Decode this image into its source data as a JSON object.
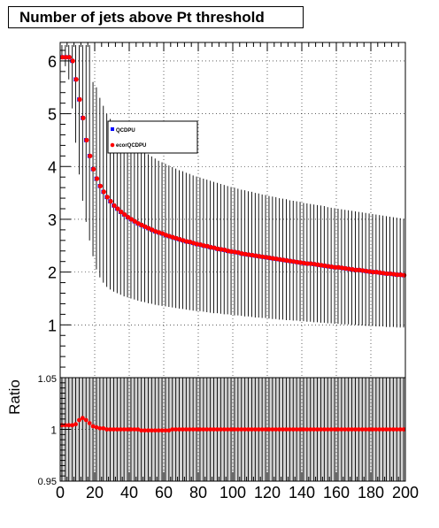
{
  "title": "Number of jets above Pt threshold",
  "chart_data": [
    {
      "type": "scatter",
      "panel": "main",
      "xlim": [
        0,
        200
      ],
      "ylim": [
        0,
        6.35
      ],
      "yticks": [
        "1",
        "2",
        "3",
        "4",
        "5",
        "6"
      ],
      "grid": true,
      "legend_position": "upper-middle",
      "series": [
        {
          "name": "QCDPU",
          "color": "#0000ff",
          "x": [
            1,
            3,
            5,
            7,
            9,
            11,
            13,
            15,
            17,
            19,
            21,
            23,
            25,
            27,
            29,
            31,
            33,
            35,
            37,
            39,
            41,
            43,
            45,
            47,
            49,
            51,
            53,
            55,
            57,
            59,
            61,
            63,
            65,
            67,
            69,
            71,
            73,
            75,
            77,
            79,
            81,
            83,
            85,
            87,
            89,
            91,
            93,
            95,
            97,
            99,
            101,
            103,
            105,
            107,
            109,
            111,
            113,
            115,
            117,
            119,
            121,
            123,
            125,
            127,
            129,
            131,
            133,
            135,
            137,
            139,
            141,
            143,
            145,
            147,
            149,
            151,
            153,
            155,
            157,
            159,
            161,
            163,
            165,
            167,
            169,
            171,
            173,
            175,
            177,
            179,
            181,
            183,
            185,
            187,
            189,
            191,
            193,
            195,
            197,
            199
          ],
          "y": [
            6.07,
            6.07,
            6.07,
            6.0,
            5.65,
            5.27,
            4.92,
            4.5,
            4.2,
            3.95,
            3.77,
            3.63,
            3.52,
            3.42,
            3.34,
            3.26,
            3.2,
            3.14,
            3.09,
            3.04,
            3.0,
            2.96,
            2.92,
            2.89,
            2.86,
            2.83,
            2.8,
            2.77,
            2.75,
            2.73,
            2.7,
            2.68,
            2.66,
            2.64,
            2.62,
            2.6,
            2.58,
            2.57,
            2.55,
            2.53,
            2.52,
            2.5,
            2.49,
            2.47,
            2.46,
            2.44,
            2.43,
            2.42,
            2.4,
            2.39,
            2.38,
            2.37,
            2.35,
            2.34,
            2.33,
            2.32,
            2.31,
            2.3,
            2.29,
            2.28,
            2.27,
            2.26,
            2.25,
            2.24,
            2.23,
            2.22,
            2.21,
            2.2,
            2.19,
            2.18,
            2.17,
            2.16,
            2.16,
            2.15,
            2.14,
            2.13,
            2.12,
            2.11,
            2.1,
            2.09,
            2.09,
            2.08,
            2.07,
            2.06,
            2.05,
            2.04,
            2.04,
            2.03,
            2.02,
            2.01,
            2.0,
            2.0,
            1.99,
            1.98,
            1.97,
            1.97,
            1.96,
            1.95,
            1.95,
            1.94
          ],
          "yerr_low": [
            6.05,
            5.9,
            5.65,
            5.1,
            4.45,
            3.85,
            3.35,
            2.95,
            2.6,
            2.3,
            2.05,
            1.9,
            1.8,
            1.72,
            1.67,
            1.63,
            1.6,
            1.57,
            1.54,
            1.52,
            1.5,
            1.48,
            1.46,
            1.44,
            1.43,
            1.41,
            1.4,
            1.38,
            1.37,
            1.36,
            1.35,
            1.34,
            1.33,
            1.32,
            1.31,
            1.3,
            1.29,
            1.28,
            1.27,
            1.26,
            1.26,
            1.25,
            1.24,
            1.23,
            1.22,
            1.22,
            1.21,
            1.2,
            1.2,
            1.19,
            1.18,
            1.18,
            1.17,
            1.16,
            1.16,
            1.15,
            1.14,
            1.14,
            1.13,
            1.13,
            1.12,
            1.11,
            1.11,
            1.1,
            1.1,
            1.09,
            1.09,
            1.08,
            1.08,
            1.07,
            1.07,
            1.06,
            1.06,
            1.05,
            1.05,
            1.04,
            1.04,
            1.03,
            1.03,
            1.02,
            1.02,
            1.01,
            1.01,
            1.01,
            1.0,
            1.0,
            0.99,
            0.99,
            0.98,
            0.98,
            0.98,
            0.97,
            0.97,
            0.97,
            0.96,
            0.96,
            0.96,
            0.95,
            0.95,
            0.95
          ],
          "yerr_high": [
            6.3,
            6.3,
            6.3,
            6.3,
            6.3,
            6.3,
            6.3,
            6.3,
            6.3,
            5.6,
            5.5,
            5.3,
            5.15,
            5.0,
            4.9,
            4.8,
            4.72,
            4.65,
            4.58,
            4.52,
            4.46,
            4.41,
            4.36,
            4.31,
            4.27,
            4.23,
            4.19,
            4.15,
            4.11,
            4.08,
            4.05,
            4.02,
            3.99,
            3.96,
            3.93,
            3.91,
            3.88,
            3.86,
            3.83,
            3.81,
            3.79,
            3.77,
            3.75,
            3.73,
            3.71,
            3.69,
            3.67,
            3.65,
            3.63,
            3.61,
            3.6,
            3.58,
            3.56,
            3.55,
            3.53,
            3.52,
            3.5,
            3.49,
            3.47,
            3.46,
            3.44,
            3.43,
            3.42,
            3.4,
            3.39,
            3.38,
            3.36,
            3.35,
            3.34,
            3.33,
            3.31,
            3.3,
            3.29,
            3.28,
            3.27,
            3.26,
            3.25,
            3.23,
            3.22,
            3.21,
            3.2,
            3.19,
            3.18,
            3.17,
            3.16,
            3.15,
            3.14,
            3.13,
            3.12,
            3.11,
            3.1,
            3.09,
            3.08,
            3.07,
            3.06,
            3.05,
            3.04,
            3.03,
            3.02,
            3.01
          ]
        },
        {
          "name": "ecorQCDPU",
          "color": "#ff0000",
          "x": [
            1,
            3,
            5,
            7,
            9,
            11,
            13,
            15,
            17,
            19,
            21,
            23,
            25,
            27,
            29,
            31,
            33,
            35,
            37,
            39,
            41,
            43,
            45,
            47,
            49,
            51,
            53,
            55,
            57,
            59,
            61,
            63,
            65,
            67,
            69,
            71,
            73,
            75,
            77,
            79,
            81,
            83,
            85,
            87,
            89,
            91,
            93,
            95,
            97,
            99,
            101,
            103,
            105,
            107,
            109,
            111,
            113,
            115,
            117,
            119,
            121,
            123,
            125,
            127,
            129,
            131,
            133,
            135,
            137,
            139,
            141,
            143,
            145,
            147,
            149,
            151,
            153,
            155,
            157,
            159,
            161,
            163,
            165,
            167,
            169,
            171,
            173,
            175,
            177,
            179,
            181,
            183,
            185,
            187,
            189,
            191,
            193,
            195,
            197,
            199
          ],
          "y": [
            6.07,
            6.07,
            6.07,
            6.0,
            5.65,
            5.27,
            4.92,
            4.5,
            4.2,
            3.95,
            3.77,
            3.63,
            3.52,
            3.42,
            3.34,
            3.26,
            3.2,
            3.14,
            3.09,
            3.04,
            3.0,
            2.96,
            2.92,
            2.89,
            2.86,
            2.83,
            2.8,
            2.77,
            2.75,
            2.73,
            2.7,
            2.68,
            2.66,
            2.64,
            2.62,
            2.6,
            2.58,
            2.57,
            2.55,
            2.53,
            2.52,
            2.5,
            2.49,
            2.47,
            2.46,
            2.44,
            2.43,
            2.42,
            2.4,
            2.39,
            2.38,
            2.37,
            2.35,
            2.34,
            2.33,
            2.32,
            2.31,
            2.3,
            2.29,
            2.28,
            2.27,
            2.26,
            2.25,
            2.24,
            2.23,
            2.22,
            2.21,
            2.2,
            2.19,
            2.18,
            2.17,
            2.16,
            2.16,
            2.15,
            2.14,
            2.13,
            2.12,
            2.11,
            2.1,
            2.09,
            2.09,
            2.08,
            2.07,
            2.06,
            2.05,
            2.04,
            2.04,
            2.03,
            2.02,
            2.01,
            2.0,
            2.0,
            1.99,
            1.98,
            1.97,
            1.97,
            1.96,
            1.95,
            1.95,
            1.94
          ]
        }
      ]
    },
    {
      "type": "scatter",
      "panel": "ratio",
      "ylabel": "Ratio",
      "xlim": [
        0,
        200
      ],
      "ylim": [
        0.95,
        1.05
      ],
      "xticks": [
        "0",
        "20",
        "40",
        "60",
        "80",
        "100",
        "120",
        "140",
        "160",
        "180",
        "200"
      ],
      "yticks": [
        "0.95",
        "1",
        "1.05"
      ],
      "grid": true,
      "series": [
        {
          "color": "#ff0000",
          "band_color": "#d3d3d3",
          "x": [
            1,
            3,
            5,
            7,
            9,
            11,
            13,
            15,
            17,
            19,
            21,
            23,
            25,
            27,
            29,
            31,
            33,
            35,
            37,
            39,
            41,
            43,
            45,
            47,
            49,
            51,
            53,
            55,
            57,
            59,
            61,
            63,
            65,
            67,
            69,
            71,
            73,
            75,
            77,
            79,
            81,
            83,
            85,
            87,
            89,
            91,
            93,
            95,
            97,
            99,
            101,
            103,
            105,
            107,
            109,
            111,
            113,
            115,
            117,
            119,
            121,
            123,
            125,
            127,
            129,
            131,
            133,
            135,
            137,
            139,
            141,
            143,
            145,
            147,
            149,
            151,
            153,
            155,
            157,
            159,
            161,
            163,
            165,
            167,
            169,
            171,
            173,
            175,
            177,
            179,
            181,
            183,
            185,
            187,
            189,
            191,
            193,
            195,
            197,
            199
          ],
          "y": [
            1.004,
            1.004,
            1.004,
            1.004,
            1.005,
            1.009,
            1.011,
            1.009,
            1.006,
            1.003,
            1.002,
            1.001,
            1.001,
            1.0,
            1.0,
            1.0,
            1.0,
            1.0,
            1.0,
            1.0,
            1.0,
            1.0,
            1.0,
            0.999,
            0.999,
            0.999,
            0.999,
            0.999,
            0.999,
            0.999,
            0.999,
            0.999,
            1.0,
            1.0,
            1.0,
            1.0,
            1.0,
            1.0,
            1.0,
            1.0,
            1.0,
            1.0,
            1.0,
            1.0,
            1.0,
            1.0,
            1.0,
            1.0,
            1.0,
            1.0,
            1.0,
            1.0,
            1.0,
            1.0,
            1.0,
            1.0,
            1.0,
            1.0,
            1.0,
            1.0,
            1.0,
            1.0,
            1.0,
            1.0,
            1.0,
            1.0,
            1.0,
            1.0,
            1.0,
            1.0,
            1.0,
            1.0,
            1.0,
            1.0,
            1.0,
            1.0,
            1.0,
            1.0,
            1.0,
            1.0,
            1.0,
            1.0,
            1.0,
            1.0,
            1.0,
            1.0,
            1.0,
            1.0,
            1.0,
            1.0,
            1.0,
            1.0,
            1.0,
            1.0,
            1.0,
            1.0,
            1.0,
            1.0,
            1.0,
            1.0
          ]
        }
      ]
    }
  ]
}
